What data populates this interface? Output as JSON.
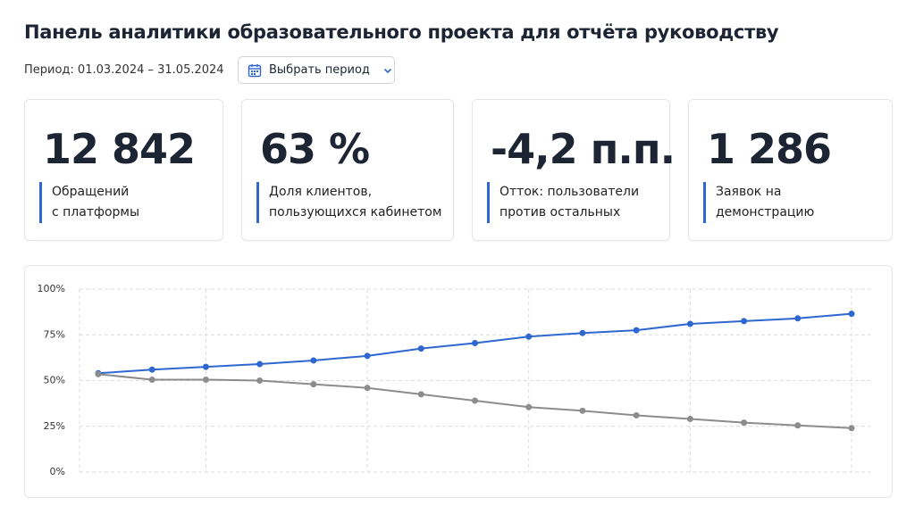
{
  "header": {
    "title": "Панель аналитики образовательного проекта для отчёта руководству",
    "period_label": "Период: 01.03.2024 – 31.05.2024",
    "period_button": "Выбрать период"
  },
  "kpis": [
    {
      "value": "12 842",
      "label": [
        "Обращений",
        "с платформы"
      ]
    },
    {
      "value": "63 %",
      "label": [
        "Доля клиентов,",
        "пользующихся кабинетом"
      ]
    },
    {
      "value": "-4,2 п.п.",
      "label": [
        "Отток: пользователи",
        "против остальных"
      ]
    },
    {
      "value": "1 286",
      "label": [
        "Заявок на",
        "демонстрацию"
      ]
    }
  ],
  "chart_data": {
    "type": "line",
    "categories": [
      null,
      null,
      null,
      null,
      null,
      null,
      null,
      null,
      null,
      null,
      null,
      null,
      null,
      null,
      null
    ],
    "series": [
      {
        "color": "#2f67d0",
        "values": [
          54,
          56,
          57.5,
          59,
          61,
          63.5,
          67.5,
          70.5,
          74,
          76,
          77.5,
          81,
          82.5,
          84,
          86.5
        ]
      },
      {
        "color": "#8c8c8c",
        "values": [
          53.5,
          50.5,
          50.5,
          50,
          48,
          46,
          42.5,
          39,
          35.5,
          33.5,
          31,
          29,
          27,
          25.5,
          24
        ]
      }
    ],
    "ylim": [
      0,
      100
    ],
    "yticks": [
      {
        "value": 0,
        "label": "0%"
      },
      {
        "value": 25,
        "label": "25%"
      },
      {
        "value": 50,
        "label": "50%"
      },
      {
        "value": 75,
        "label": "75%"
      },
      {
        "value": 100,
        "label": "100%"
      }
    ],
    "grid": true
  }
}
